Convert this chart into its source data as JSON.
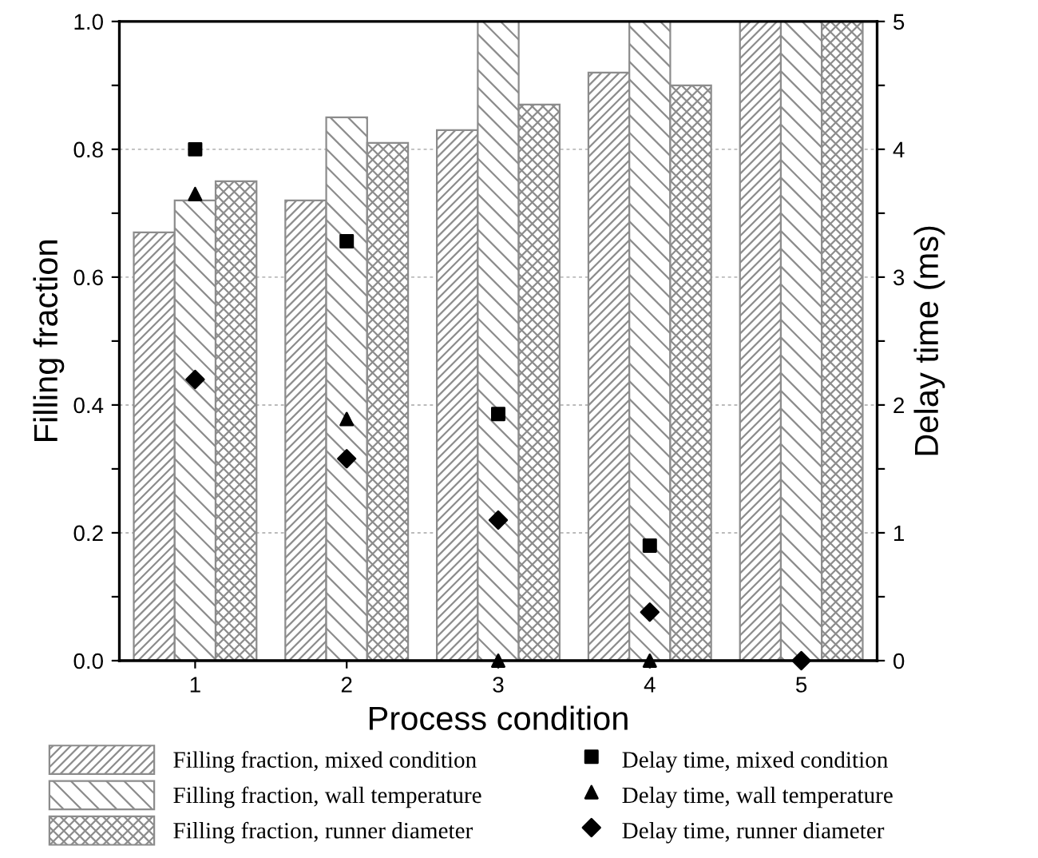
{
  "chart_data": {
    "type": "bar",
    "xlabel": "Process condition",
    "ylabel": "Filling fraction",
    "y2label": "Delay time (ms)",
    "categories": [
      "1",
      "2",
      "3",
      "4",
      "5"
    ],
    "series": [
      {
        "name": "Filling fraction, mixed condition",
        "color": "#8c8c8c",
        "values": [
          0.67,
          0.72,
          0.83,
          0.92,
          1.0
        ]
      },
      {
        "name": "Filling fraction, wall temperature",
        "color": "#8c8c8c",
        "values": [
          0.72,
          0.85,
          1.0,
          1.0,
          1.0
        ]
      },
      {
        "name": "Filling fraction, runner diameter",
        "color": "#8c8c8c",
        "values": [
          0.75,
          0.81,
          0.87,
          0.9,
          1.0
        ]
      },
      {
        "name": "Delay time, mixed condition",
        "type": "scatter",
        "axis": "y2",
        "marker": "square",
        "color": "#000000",
        "x": [
          "1",
          "2",
          "3",
          "4",
          "5"
        ],
        "values": [
          4.0,
          3.28,
          1.93,
          0.9,
          null
        ]
      },
      {
        "name": "Delay time, wall temperature",
        "type": "scatter",
        "axis": "y2",
        "marker": "triangle",
        "color": "#000000",
        "x": [
          "1",
          "2",
          "3",
          "4",
          "5"
        ],
        "values": [
          3.65,
          1.89,
          0,
          0,
          null
        ]
      },
      {
        "name": "Delay time, runner diameter",
        "type": "scatter",
        "axis": "y2",
        "marker": "diamond",
        "color": "#000000",
        "x": [
          "1",
          "2",
          "3",
          "4",
          "5"
        ],
        "values": [
          2.2,
          1.58,
          1.1,
          0.38,
          0
        ]
      }
    ],
    "ylim": [
      0,
      1.0
    ],
    "yticks": [
      {
        "value": 0,
        "label": "0.0"
      },
      {
        "value": 0.1,
        "label": null
      },
      0.2,
      {
        "value": 0.3,
        "label": null
      },
      0.4,
      {
        "value": 0.5,
        "label": null
      },
      0.6,
      {
        "value": 0.7,
        "label": null
      },
      0.8,
      {
        "value": 0.9,
        "label": null
      },
      {
        "value": 1,
        "label": "1.0"
      }
    ],
    "y2lim": [
      0,
      5
    ],
    "y2ticks": [
      0,
      {
        "value": 0.5,
        "label": null
      },
      1,
      {
        "value": 1.5,
        "label": null
      },
      2,
      {
        "value": 2.5,
        "label": null
      },
      3,
      {
        "value": 3.5,
        "label": null
      },
      4,
      {
        "value": 4.5,
        "label": null
      },
      5
    ],
    "grid": "y",
    "legend": "bottom"
  }
}
